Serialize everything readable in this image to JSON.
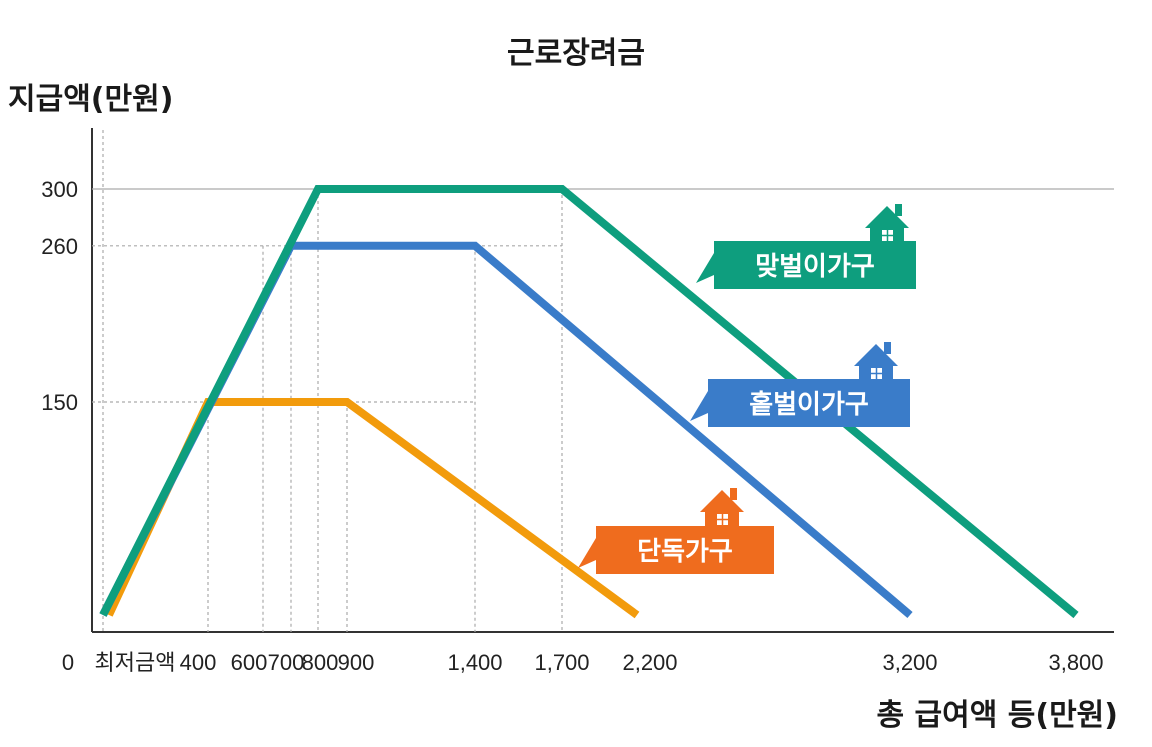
{
  "chart_data": {
    "type": "line",
    "title": "근로장려금",
    "ylabel": "지급액(만원)",
    "xlabel": "총 급여액 등(만원)",
    "x_tick_labels": [
      "0",
      "최저금액",
      "400",
      "600",
      "700",
      "800",
      "900",
      "1,400",
      "1,700",
      "2,200",
      "3,200",
      "3,800"
    ],
    "y_tick_labels": [
      "300",
      "260",
      "150"
    ],
    "ylim": [
      0,
      300
    ],
    "series": [
      {
        "name": "맞벌이가구",
        "color": "#0e9e7e",
        "points": [
          [
            0,
            0
          ],
          [
            800,
            300
          ],
          [
            1700,
            300
          ],
          [
            3800,
            0
          ]
        ]
      },
      {
        "name": "홑벌이가구",
        "color": "#3a7cc9",
        "points": [
          [
            0,
            0
          ],
          [
            700,
            260
          ],
          [
            1400,
            260
          ],
          [
            3200,
            0
          ]
        ]
      },
      {
        "name": "단독가구",
        "color": "#f29b0c",
        "points": [
          [
            0,
            0
          ],
          [
            400,
            150
          ],
          [
            900,
            150
          ],
          [
            2200,
            0
          ]
        ]
      }
    ],
    "legend_labels": [
      {
        "text": "맞벌이가구",
        "color": "#0e9e7e"
      },
      {
        "text": "홑벌이가구",
        "color": "#3a7cc9"
      },
      {
        "text": "단독가구",
        "color": "#ef6c1e"
      }
    ]
  }
}
